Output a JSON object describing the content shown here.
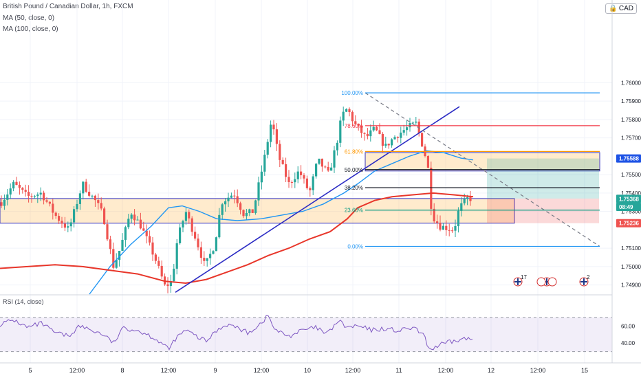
{
  "header": {
    "symbol": "British Pound / Canadian Dollar, 1h, FXCM",
    "ma50": "MA (50, close, 0)",
    "ma100": "MA (100, close, 0)",
    "currency": "CAD",
    "currency_icon": "lock-icon"
  },
  "rsi_panel": {
    "label": "RSI (14, close)",
    "levels": [
      70,
      30
    ]
  },
  "chart_data": {
    "type": "candlestick",
    "timeframe": "1h",
    "y_axis": {
      "range": [
        1.7485,
        1.7645
      ],
      "ticks": [
        "1.76000",
        "1.75900",
        "1.75800",
        "1.75700",
        "1.75500",
        "1.75400",
        "1.75300",
        "1.75100",
        "1.75000",
        "1.74900"
      ]
    },
    "x_axis": {
      "ticks": [
        "5",
        "12:00",
        "8",
        "12:00",
        "9",
        "12:00",
        "10",
        "12:00",
        "11",
        "12:00",
        "12",
        "12:00",
        "15"
      ]
    },
    "price_labels": [
      {
        "text": "1.75588",
        "bg": "#1e53e5",
        "fg": "#ffffff",
        "value": 1.75588
      },
      {
        "text": "1.75370",
        "bg": "#e8e8ec",
        "fg": "#131722",
        "value": 1.7537
      },
      {
        "text": "1.75368",
        "bg": "#26a69a",
        "fg": "#ffffff",
        "value": 1.75368
      },
      {
        "text": "08:49",
        "bg": "#26a69a",
        "fg": "#ffffff",
        "value": 1.75325
      },
      {
        "text": "1.75236",
        "bg": "#ef5350",
        "fg": "#ffffff",
        "value": 1.75236
      }
    ],
    "fibonacci": {
      "high": 1.75945,
      "low": 1.7511,
      "levels": [
        {
          "label": "100.00%",
          "ratio": 1.0,
          "color": "#2196f3"
        },
        {
          "label": "78.60%",
          "ratio": 0.786,
          "color": "#f23645"
        },
        {
          "label": "61.80%",
          "ratio": 0.618,
          "color": "#ff9800"
        },
        {
          "label": "50.00%",
          "ratio": 0.5,
          "color": "#131722"
        },
        {
          "label": "38.20%",
          "ratio": 0.382,
          "color": "#131722"
        },
        {
          "label": "23.60%",
          "ratio": 0.236,
          "color": "#089981"
        },
        {
          "label": "0.00%",
          "ratio": 0.0,
          "color": "#2196f3"
        }
      ]
    },
    "events": [
      {
        "flag": "uk-flag-icon",
        "text": "17"
      },
      {
        "flag": "uk-flag-icon",
        "text": ""
      },
      {
        "flag": "uk-flag-icon",
        "text": "2"
      }
    ],
    "colors": {
      "up": "#26a69a",
      "down": "#ef5350",
      "ma50": "#2196f3",
      "ma100": "#e8362a",
      "rsi": "#7e57c2"
    }
  }
}
